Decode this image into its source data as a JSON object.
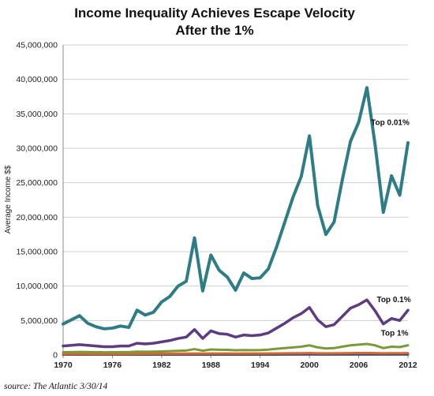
{
  "chart_data": {
    "type": "line",
    "title": "Income Inequality Achieves Escape Velocity",
    "subtitle": "After the 1%",
    "ylabel": "Average Income $$",
    "xlabel": "",
    "xlim": [
      1970,
      2012
    ],
    "ylim": [
      0,
      45000000
    ],
    "x_ticks": [
      1970,
      1976,
      1982,
      1988,
      1994,
      2000,
      2006,
      2012
    ],
    "y_ticks": [
      {
        "value": 0,
        "label": "0"
      },
      {
        "value": 5000000,
        "label": "5,000,000"
      },
      {
        "value": 10000000,
        "label": "10,000,000"
      },
      {
        "value": 15000000,
        "label": "15,000,000"
      },
      {
        "value": 20000000,
        "label": "20,000,000"
      },
      {
        "value": 25000000,
        "label": "25,000,000"
      },
      {
        "value": 30000000,
        "label": "30,000,000"
      },
      {
        "value": 35000000,
        "label": "35,000,000"
      },
      {
        "value": 40000000,
        "label": "40,000,000"
      },
      {
        "value": 45000000,
        "label": "45,000,000"
      }
    ],
    "grid": "horizontal",
    "x": [
      1970,
      1971,
      1972,
      1973,
      1974,
      1975,
      1976,
      1977,
      1978,
      1979,
      1980,
      1981,
      1982,
      1983,
      1984,
      1985,
      1986,
      1987,
      1988,
      1989,
      1990,
      1991,
      1992,
      1993,
      1994,
      1995,
      1996,
      1997,
      1998,
      1999,
      2000,
      2001,
      2002,
      2003,
      2004,
      2005,
      2006,
      2007,
      2008,
      2009,
      2010,
      2011,
      2012
    ],
    "series": [
      {
        "name": "Top 0.01%",
        "color": "#2e7d86",
        "values": [
          4500000,
          5100000,
          5700000,
          4600000,
          4100000,
          3800000,
          3900000,
          4200000,
          4000000,
          6500000,
          5800000,
          6200000,
          7700000,
          8500000,
          10000000,
          10700000,
          17000000,
          9300000,
          14500000,
          12300000,
          11300000,
          9400000,
          11900000,
          11100000,
          11200000,
          12500000,
          15700000,
          19300000,
          22900000,
          25900000,
          31800000,
          21700000,
          17500000,
          19300000,
          25400000,
          31000000,
          33800000,
          38800000,
          30500000,
          20700000,
          26000000,
          23200000,
          30800000
        ]
      },
      {
        "name": "Top 0.1%",
        "color": "#5e3a80",
        "values": [
          1300000,
          1400000,
          1500000,
          1400000,
          1300000,
          1200000,
          1200000,
          1300000,
          1300000,
          1700000,
          1600000,
          1700000,
          1900000,
          2100000,
          2400000,
          2600000,
          3700000,
          2400000,
          3500000,
          3100000,
          3000000,
          2600000,
          2900000,
          2800000,
          2900000,
          3200000,
          3900000,
          4600000,
          5400000,
          6000000,
          6900000,
          5100000,
          4100000,
          4400000,
          5600000,
          6800000,
          7300000,
          8000000,
          6400000,
          4500000,
          5300000,
          5000000,
          6500000
        ]
      },
      {
        "name": "Top 1%",
        "color": "#7a9a3a",
        "values": [
          400000,
          420000,
          450000,
          430000,
          400000,
          390000,
          400000,
          410000,
          420000,
          480000,
          470000,
          490000,
          520000,
          560000,
          600000,
          650000,
          850000,
          620000,
          800000,
          760000,
          740000,
          680000,
          720000,
          700000,
          720000,
          780000,
          900000,
          1000000,
          1100000,
          1200000,
          1400000,
          1100000,
          950000,
          1000000,
          1200000,
          1400000,
          1500000,
          1600000,
          1400000,
          1000000,
          1200000,
          1150000,
          1400000
        ]
      },
      {
        "name": "",
        "color": "#d9662b",
        "values": [
          150000,
          150000,
          160000,
          155000,
          150000,
          150000,
          150000,
          155000,
          160000,
          170000,
          170000,
          175000,
          180000,
          185000,
          190000,
          195000,
          220000,
          200000,
          215000,
          215000,
          210000,
          205000,
          210000,
          210000,
          215000,
          220000,
          230000,
          240000,
          250000,
          260000,
          270000,
          250000,
          240000,
          245000,
          260000,
          275000,
          285000,
          290000,
          275000,
          250000,
          260000,
          258000,
          275000
        ]
      },
      {
        "name": "",
        "color": "#2f4f8a",
        "values": [
          50000,
          50000,
          52000,
          51000,
          50000,
          50000,
          50000,
          51000,
          52000,
          54000,
          54000,
          55000,
          56000,
          57000,
          58000,
          59000,
          62000,
          60000,
          62000,
          62000,
          61000,
          60000,
          61000,
          61000,
          62000,
          63000,
          64000,
          66000,
          68000,
          70000,
          72000,
          70000,
          68000,
          69000,
          71000,
          73000,
          75000,
          76000,
          74000,
          70000,
          71000,
          71000,
          73000
        ]
      }
    ],
    "annotations": [
      {
        "text": "Top 0.01%",
        "x": 2007.5,
        "y": 33400000
      },
      {
        "text": "Top 0.1%",
        "x": 2008.2,
        "y": 7700000
      },
      {
        "text": "Top 1%",
        "x": 2008.7,
        "y": 2800000
      }
    ],
    "source": "source: The Atlantic 3/30/14"
  }
}
